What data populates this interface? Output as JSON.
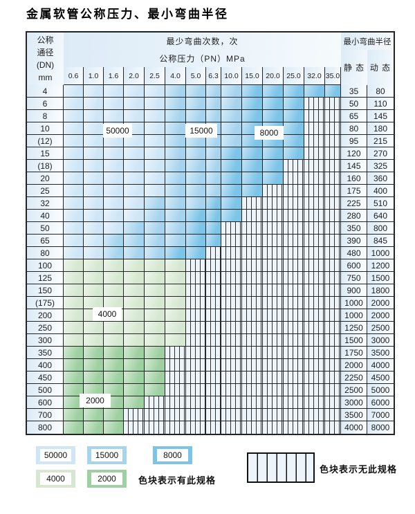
{
  "title": "金属软管公称压力、最小弯曲半径",
  "table": {
    "dn_header_lines": [
      "公称",
      "通径",
      "(DN)",
      "mm"
    ],
    "bend_times_header": "最少弯曲次数，次",
    "pressure_header": "公称压力（PN）MPa",
    "radius_header": "最小弯曲半径",
    "static_header": "静 态",
    "dynamic_header": "动 态",
    "pressure_columns": [
      "0.6",
      "1.0",
      "1.6",
      "2.0",
      "2.5",
      "4.0",
      "5.0",
      "6.3",
      "10.0",
      "15.0",
      "20.0",
      "25.0",
      "32.0",
      "35.0"
    ],
    "region_labels": [
      "50000",
      "15000",
      "8000",
      "4000",
      "2000"
    ],
    "rows": [
      {
        "dn": "4",
        "static": "35",
        "dynamic": "80",
        "zone": "blue",
        "light_end": 4,
        "med_end": 8,
        "color_end": 13
      },
      {
        "dn": "6",
        "static": "50",
        "dynamic": "110",
        "zone": "blue",
        "light_end": 4,
        "med_end": 8,
        "color_end": 11
      },
      {
        "dn": "8",
        "static": "65",
        "dynamic": "145",
        "zone": "blue",
        "light_end": 4,
        "med_end": 8,
        "color_end": 11
      },
      {
        "dn": "10",
        "static": "80",
        "dynamic": "180",
        "zone": "blue",
        "light_end": 4,
        "med_end": 8,
        "color_end": 11
      },
      {
        "dn": "(12)",
        "static": "95",
        "dynamic": "215",
        "zone": "blue",
        "light_end": 4,
        "med_end": 8,
        "color_end": 11
      },
      {
        "dn": "15",
        "static": "120",
        "dynamic": "270",
        "zone": "blue",
        "light_end": 4,
        "med_end": 7,
        "color_end": 11
      },
      {
        "dn": "(18)",
        "static": "145",
        "dynamic": "325",
        "zone": "blue",
        "light_end": 4,
        "med_end": 7,
        "color_end": 10
      },
      {
        "dn": "20",
        "static": "160",
        "dynamic": "360",
        "zone": "blue",
        "light_end": 4,
        "med_end": 7,
        "color_end": 10
      },
      {
        "dn": "25",
        "static": "175",
        "dynamic": "400",
        "zone": "blue",
        "light_end": 4,
        "med_end": 7,
        "color_end": 9
      },
      {
        "dn": "32",
        "static": "225",
        "dynamic": "510",
        "zone": "blue",
        "light_end": 3,
        "med_end": 6,
        "color_end": 8
      },
      {
        "dn": "40",
        "static": "280",
        "dynamic": "640",
        "zone": "blue",
        "light_end": 3,
        "med_end": 5,
        "color_end": 8
      },
      {
        "dn": "50",
        "static": "350",
        "dynamic": "800",
        "zone": "blue",
        "light_end": 2,
        "med_end": 5,
        "color_end": 7
      },
      {
        "dn": "65",
        "static": "390",
        "dynamic": "845",
        "zone": "blue",
        "light_end": 1,
        "med_end": 5,
        "color_end": 7
      },
      {
        "dn": "80",
        "static": "480",
        "dynamic": "1000",
        "zone": "blue",
        "light_end": 1,
        "med_end": 4,
        "color_end": 6
      },
      {
        "dn": "100",
        "static": "600",
        "dynamic": "1200",
        "zone": "green_light",
        "color_end": 5
      },
      {
        "dn": "125",
        "static": "750",
        "dynamic": "1500",
        "zone": "green_light",
        "color_end": 5
      },
      {
        "dn": "150",
        "static": "900",
        "dynamic": "1800",
        "zone": "green_light",
        "color_end": 5
      },
      {
        "dn": "(175)",
        "static": "1000",
        "dynamic": "2000",
        "zone": "green_light",
        "color_end": 5
      },
      {
        "dn": "200",
        "static": "1000",
        "dynamic": "2000",
        "zone": "green_light",
        "color_end": 5
      },
      {
        "dn": "250",
        "static": "1250",
        "dynamic": "2500",
        "zone": "green_light",
        "color_end": 5
      },
      {
        "dn": "300",
        "static": "1500",
        "dynamic": "3000",
        "zone": "green_light",
        "color_end": 5
      },
      {
        "dn": "350",
        "static": "1750",
        "dynamic": "3500",
        "zone": "green_dark",
        "color_end": 4
      },
      {
        "dn": "400",
        "static": "2000",
        "dynamic": "4000",
        "zone": "green_dark",
        "color_end": 4
      },
      {
        "dn": "450",
        "static": "2250",
        "dynamic": "4500",
        "zone": "green_dark",
        "color_end": 4
      },
      {
        "dn": "500",
        "static": "2500",
        "dynamic": "5000",
        "zone": "green_dark",
        "color_end": 4
      },
      {
        "dn": "600",
        "static": "3000",
        "dynamic": "6000",
        "zone": "green_dark",
        "color_end": 3
      },
      {
        "dn": "700",
        "static": "3500",
        "dynamic": "7000",
        "zone": "green_dark",
        "color_end": 2
      },
      {
        "dn": "800",
        "static": "4000",
        "dynamic": "8000",
        "zone": "green_dark",
        "color_end": 2
      }
    ]
  },
  "legend": {
    "chips": [
      {
        "label": "50000",
        "color": "blue_light"
      },
      {
        "label": "15000",
        "color": "blue_medium"
      },
      {
        "label": "8000",
        "color": "blue_dark"
      },
      {
        "label": "4000",
        "color": "green_light"
      },
      {
        "label": "2000",
        "color": "green_dark"
      }
    ],
    "has_spec_note": "色块表示有此规格",
    "no_spec_note": "色块表示无此规格"
  },
  "colors": {
    "blue_light": "#cfe6f6",
    "blue_medium": "#a6d4ee",
    "blue_dark": "#7cc4e8",
    "green_light": "#d6e8d1",
    "green_dark": "#9fd0a1",
    "stripe_bg": "#edf4fa",
    "stripe_line": "#2d2d2d",
    "header_bg": "#dcebf7",
    "border": "#232323"
  }
}
